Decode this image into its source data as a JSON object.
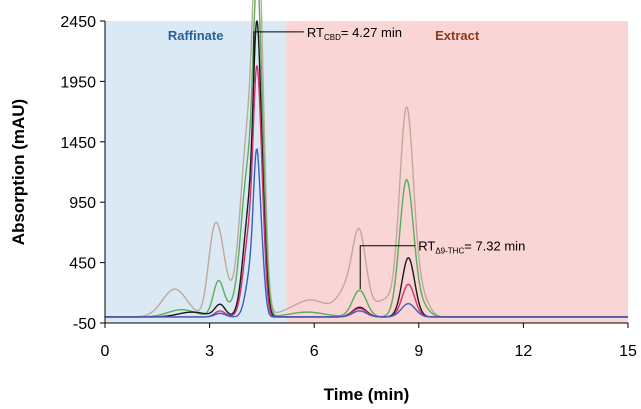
{
  "chart_data": {
    "type": "line",
    "title": "",
    "xlabel": "Time (min)",
    "ylabel": "Absorption (mAU)",
    "xlim": [
      0,
      15
    ],
    "ylim": [
      -50,
      2450
    ],
    "xticks": [
      0,
      3,
      6,
      9,
      12,
      15
    ],
    "yticks": [
      -50,
      450,
      950,
      1450,
      1950,
      2450
    ],
    "grid": false,
    "regions": [
      {
        "label": "Raffinate",
        "x_start": 0,
        "x_end": 5.2,
        "fill": "#dbe9f5",
        "label_color": "#2a6099"
      },
      {
        "label": "Extract",
        "x_start": 5.2,
        "x_end": 15,
        "fill": "#f9d5d5",
        "label_color": "#8b3a1a"
      }
    ],
    "annotations": [
      {
        "main": "RT",
        "sub": "CBD",
        "rest": "= 4.27 min",
        "x": 4.27
      },
      {
        "main": "RT",
        "sub": "Δ9-THC",
        "rest": "= 7.32 min",
        "x": 7.32
      }
    ],
    "series": [
      {
        "color": "#c0a99a",
        "baseline": 0,
        "peaks": [
          [
            2.0,
            230,
            0.35
          ],
          [
            3.05,
            320,
            0.15
          ],
          [
            3.25,
            580,
            0.18
          ],
          [
            3.5,
            120,
            0.18
          ],
          [
            4.1,
            1500,
            0.22
          ],
          [
            4.35,
            1950,
            0.12
          ],
          [
            4.5,
            1200,
            0.12
          ],
          [
            5.5,
            60,
            0.5
          ],
          [
            6.0,
            100,
            0.4
          ],
          [
            7.1,
            300,
            0.35
          ],
          [
            7.3,
            470,
            0.18
          ],
          [
            8.05,
            130,
            0.25
          ],
          [
            8.65,
            1720,
            0.2
          ],
          [
            9.1,
            150,
            0.2
          ]
        ]
      },
      {
        "color": "#5aad5a",
        "baseline": 0,
        "peaks": [
          [
            2.2,
            60,
            0.4
          ],
          [
            3.25,
            280,
            0.15
          ],
          [
            3.55,
            60,
            0.2
          ],
          [
            4.1,
            1200,
            0.2
          ],
          [
            4.35,
            1800,
            0.11
          ],
          [
            4.5,
            1000,
            0.12
          ],
          [
            5.8,
            40,
            0.5
          ],
          [
            7.3,
            220,
            0.2
          ],
          [
            8.65,
            1130,
            0.2
          ],
          [
            9.1,
            80,
            0.2
          ]
        ]
      },
      {
        "color": "#1a1a1a",
        "baseline": 0,
        "peaks": [
          [
            2.5,
            40,
            0.4
          ],
          [
            3.3,
            100,
            0.15
          ],
          [
            4.15,
            900,
            0.18
          ],
          [
            4.35,
            1650,
            0.1
          ],
          [
            4.5,
            800,
            0.11
          ],
          [
            7.3,
            80,
            0.2
          ],
          [
            8.7,
            490,
            0.18
          ]
        ]
      },
      {
        "color": "#d62f6f",
        "baseline": 0,
        "peaks": [
          [
            3.3,
            50,
            0.15
          ],
          [
            4.15,
            700,
            0.17
          ],
          [
            4.35,
            1500,
            0.1
          ],
          [
            4.5,
            700,
            0.1
          ],
          [
            7.3,
            70,
            0.2
          ],
          [
            8.7,
            270,
            0.18
          ]
        ]
      },
      {
        "color": "#3a5fbf",
        "baseline": 0,
        "peaks": [
          [
            3.3,
            30,
            0.15
          ],
          [
            4.2,
            400,
            0.15
          ],
          [
            4.35,
            1050,
            0.09
          ],
          [
            4.5,
            400,
            0.09
          ],
          [
            7.3,
            50,
            0.2
          ],
          [
            8.7,
            110,
            0.2
          ]
        ]
      }
    ]
  }
}
